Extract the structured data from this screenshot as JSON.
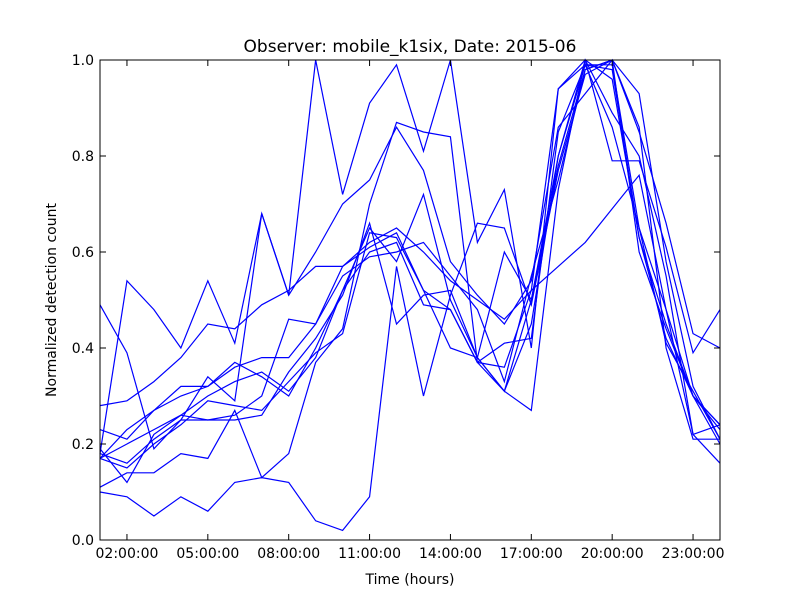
{
  "chart_data": {
    "type": "line",
    "title": "Observer: mobile_k1six, Date: 2015-06",
    "xlabel": "Time (hours)",
    "ylabel": "Normalized detection count",
    "x": [
      1,
      2,
      3,
      4,
      5,
      6,
      7,
      8,
      9,
      10,
      11,
      12,
      13,
      14,
      15,
      16,
      17,
      18,
      19,
      20,
      21,
      22,
      23,
      24
    ],
    "xlim": [
      1,
      24
    ],
    "ylim": [
      0,
      1
    ],
    "xticks": [
      {
        "value": 2,
        "label": "02:00:00"
      },
      {
        "value": 5,
        "label": "05:00:00"
      },
      {
        "value": 8,
        "label": "08:00:00"
      },
      {
        "value": 11,
        "label": "11:00:00"
      },
      {
        "value": 14,
        "label": "14:00:00"
      },
      {
        "value": 17,
        "label": "17:00:00"
      },
      {
        "value": 20,
        "label": "20:00:00"
      },
      {
        "value": 23,
        "label": "23:00:00"
      }
    ],
    "yticks": [
      {
        "value": 0,
        "label": "0.0"
      },
      {
        "value": 0.2,
        "label": "0.2"
      },
      {
        "value": 0.4,
        "label": "0.4"
      },
      {
        "value": 0.6,
        "label": "0.6"
      },
      {
        "value": 0.8,
        "label": "0.8"
      },
      {
        "value": 1,
        "label": "1.0"
      }
    ],
    "grid": false,
    "line_color": "#0000ff",
    "series": [
      {
        "values": [
          0.49,
          0.39,
          0.19,
          0.25,
          0.34,
          0.29,
          0.68,
          0.51,
          1.0,
          0.72,
          0.91,
          0.99,
          0.81,
          1.0,
          0.62,
          0.73,
          0.4,
          0.94,
          1.0,
          0.79,
          0.79,
          0.61,
          0.39,
          0.48
        ]
      },
      {
        "values": [
          0.18,
          0.54,
          0.48,
          0.4,
          0.54,
          0.41,
          0.68,
          0.51,
          0.6,
          0.7,
          0.75,
          0.86,
          0.77,
          0.58,
          0.51,
          0.45,
          0.54,
          0.86,
          0.93,
          1.0,
          0.85,
          0.66,
          0.43,
          0.4
        ]
      },
      {
        "values": [
          0.1,
          0.09,
          0.05,
          0.09,
          0.06,
          0.12,
          0.13,
          0.12,
          0.04,
          0.02,
          0.09,
          0.57,
          0.3,
          0.51,
          0.66,
          0.65,
          0.49,
          0.77,
          0.97,
          1.0,
          0.93,
          0.58,
          0.32,
          0.21
        ]
      },
      {
        "values": [
          0.11,
          0.14,
          0.14,
          0.18,
          0.17,
          0.27,
          0.13,
          0.18,
          0.37,
          0.44,
          0.7,
          0.87,
          0.85,
          0.84,
          0.37,
          0.31,
          0.27,
          0.73,
          1.0,
          0.89,
          0.8,
          0.55,
          0.22,
          0.24
        ]
      },
      {
        "values": [
          0.28,
          0.29,
          0.33,
          0.38,
          0.45,
          0.44,
          0.49,
          0.52,
          0.57,
          0.57,
          0.62,
          0.65,
          0.6,
          0.54,
          0.5,
          0.46,
          0.52,
          0.57,
          0.62,
          0.69,
          0.76,
          0.48,
          0.22,
          0.16
        ]
      },
      {
        "values": [
          0.23,
          0.21,
          0.27,
          0.3,
          0.32,
          0.37,
          0.34,
          0.3,
          0.4,
          0.52,
          0.65,
          0.58,
          0.72,
          0.5,
          0.38,
          0.6,
          0.5,
          0.8,
          0.99,
          0.86,
          0.65,
          0.41,
          0.31,
          0.21
        ]
      },
      {
        "values": [
          0.17,
          0.2,
          0.23,
          0.26,
          0.3,
          0.33,
          0.35,
          0.31,
          0.38,
          0.52,
          0.6,
          0.62,
          0.49,
          0.48,
          0.37,
          0.41,
          0.42,
          0.85,
          0.99,
          0.98,
          0.63,
          0.45,
          0.3,
          0.2
        ]
      },
      {
        "values": [
          0.19,
          0.12,
          0.22,
          0.26,
          0.25,
          0.26,
          0.3,
          0.46,
          0.45,
          0.55,
          0.59,
          0.6,
          0.62,
          0.55,
          0.48,
          0.33,
          0.55,
          0.75,
          0.98,
          1.0,
          0.6,
          0.44,
          0.3,
          0.23
        ]
      },
      {
        "values": [
          0.18,
          0.16,
          0.21,
          0.25,
          0.25,
          0.25,
          0.26,
          0.35,
          0.42,
          0.51,
          0.66,
          0.45,
          0.51,
          0.52,
          0.38,
          0.31,
          0.45,
          0.8,
          1.0,
          0.96,
          0.63,
          0.42,
          0.3,
          0.24
        ]
      },
      {
        "values": [
          0.17,
          0.23,
          0.27,
          0.32,
          0.32,
          0.36,
          0.38,
          0.38,
          0.45,
          0.57,
          0.61,
          0.64,
          0.52,
          0.48,
          0.37,
          0.36,
          0.52,
          0.94,
          0.99,
          0.99,
          0.65,
          0.48,
          0.3,
          0.24
        ]
      },
      {
        "values": [
          0.17,
          0.15,
          0.2,
          0.24,
          0.29,
          0.28,
          0.27,
          0.33,
          0.39,
          0.43,
          0.64,
          0.63,
          0.52,
          0.4,
          0.38,
          0.31,
          0.5,
          0.78,
          0.98,
          1.0,
          0.86,
          0.4,
          0.21,
          0.21
        ]
      }
    ]
  }
}
